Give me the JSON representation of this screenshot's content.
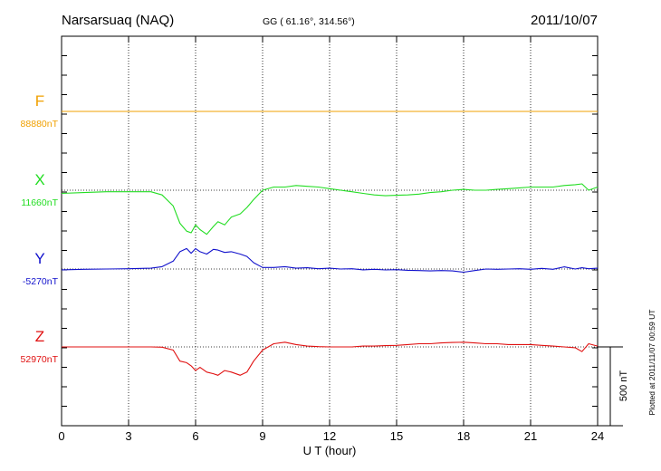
{
  "header": {
    "station": "Narsarsuaq (NAQ)",
    "coords": "GG ( 61.16°, 314.56°)",
    "date": "2011/10/07"
  },
  "plotted_note": "Plotted at 2011/11/07 00:59 UT",
  "chart_data": {
    "type": "line",
    "xlabel": "U T (hour)",
    "xlim": [
      0,
      24
    ],
    "xticks": [
      0,
      3,
      6,
      9,
      12,
      15,
      18,
      21,
      24
    ],
    "x_tick_labels": [
      "0",
      "3",
      "6",
      "9",
      "12",
      "15",
      "18",
      "21",
      "24"
    ],
    "grid": true,
    "scale_bar": {
      "label": "500 nT",
      "value_nT": 500
    },
    "series": [
      {
        "name": "F",
        "baseline_label": "88880nT",
        "color": "#f0a000",
        "x": [
          0,
          24
        ],
        "y": [
          88880,
          88880
        ]
      },
      {
        "name": "X",
        "baseline_label": "11660nT",
        "color": "#22dd22",
        "x": [
          0,
          1,
          2,
          3,
          4,
          4.5,
          5,
          5.3,
          5.6,
          5.8,
          6,
          6.2,
          6.5,
          6.8,
          7,
          7.3,
          7.6,
          8,
          8.3,
          8.6,
          9,
          9.5,
          10,
          10.5,
          11,
          11.5,
          12,
          12.5,
          13,
          13.5,
          14,
          14.5,
          15,
          15.5,
          16,
          16.5,
          17,
          17.5,
          18,
          18.5,
          19,
          19.5,
          20,
          20.5,
          21,
          21.5,
          22,
          22.5,
          23,
          23.3,
          23.6,
          24
        ],
        "y": [
          11640,
          11645,
          11650,
          11650,
          11650,
          11630,
          11560,
          11450,
          11400,
          11390,
          11440,
          11410,
          11380,
          11430,
          11460,
          11440,
          11490,
          11510,
          11550,
          11600,
          11660,
          11680,
          11680,
          11690,
          11685,
          11680,
          11670,
          11660,
          11650,
          11640,
          11630,
          11625,
          11628,
          11630,
          11635,
          11645,
          11650,
          11660,
          11665,
          11660,
          11660,
          11665,
          11670,
          11675,
          11680,
          11680,
          11680,
          11690,
          11695,
          11700,
          11660,
          11680
        ]
      },
      {
        "name": "Y",
        "baseline_label": "-5270nT",
        "color": "#1111cc",
        "x": [
          0,
          1,
          2,
          3,
          4,
          4.5,
          5,
          5.3,
          5.6,
          5.8,
          6,
          6.2,
          6.5,
          6.8,
          7,
          7.3,
          7.6,
          8,
          8.3,
          8.6,
          9,
          9.5,
          10,
          10.5,
          11,
          11.5,
          12,
          12.5,
          13,
          13.5,
          14,
          14.5,
          15,
          15.5,
          16,
          16.5,
          17,
          17.5,
          18,
          18.5,
          19,
          19.5,
          20,
          20.5,
          21,
          21.5,
          22,
          22.5,
          23,
          23.3,
          23.6,
          24
        ],
        "y": [
          -5275,
          -5272,
          -5270,
          -5268,
          -5265,
          -5255,
          -5220,
          -5160,
          -5140,
          -5170,
          -5140,
          -5160,
          -5175,
          -5145,
          -5150,
          -5165,
          -5160,
          -5175,
          -5190,
          -5230,
          -5260,
          -5260,
          -5255,
          -5265,
          -5262,
          -5268,
          -5265,
          -5270,
          -5268,
          -5275,
          -5272,
          -5276,
          -5274,
          -5278,
          -5280,
          -5282,
          -5280,
          -5282,
          -5290,
          -5280,
          -5270,
          -5272,
          -5270,
          -5268,
          -5272,
          -5266,
          -5272,
          -5256,
          -5270,
          -5262,
          -5268,
          -5265
        ]
      },
      {
        "name": "Z",
        "baseline_label": "52970nT",
        "color": "#e01010",
        "x": [
          0,
          1,
          2,
          3,
          4,
          4.5,
          5,
          5.3,
          5.6,
          5.8,
          6,
          6.2,
          6.5,
          6.8,
          7,
          7.3,
          7.6,
          8,
          8.3,
          8.6,
          9,
          9.5,
          10,
          10.5,
          11,
          11.5,
          12,
          12.5,
          13,
          13.5,
          14,
          14.5,
          15,
          15.5,
          16,
          16.5,
          17,
          17.5,
          18,
          18.5,
          19,
          19.5,
          20,
          20.5,
          21,
          21.5,
          22,
          22.5,
          23,
          23.3,
          23.6,
          24
        ],
        "y": [
          52970,
          52970,
          52970,
          52970,
          52970,
          52968,
          52950,
          52880,
          52870,
          52850,
          52820,
          52840,
          52810,
          52800,
          52790,
          52820,
          52810,
          52790,
          52810,
          52880,
          52950,
          52990,
          53000,
          52985,
          52975,
          52972,
          52970,
          52970,
          52970,
          52975,
          52975,
          52978,
          52980,
          52985,
          52990,
          52990,
          52995,
          52998,
          53000,
          52995,
          52990,
          52990,
          52985,
          52985,
          52985,
          52980,
          52975,
          52970,
          52965,
          52940,
          52990,
          52975
        ]
      }
    ]
  }
}
